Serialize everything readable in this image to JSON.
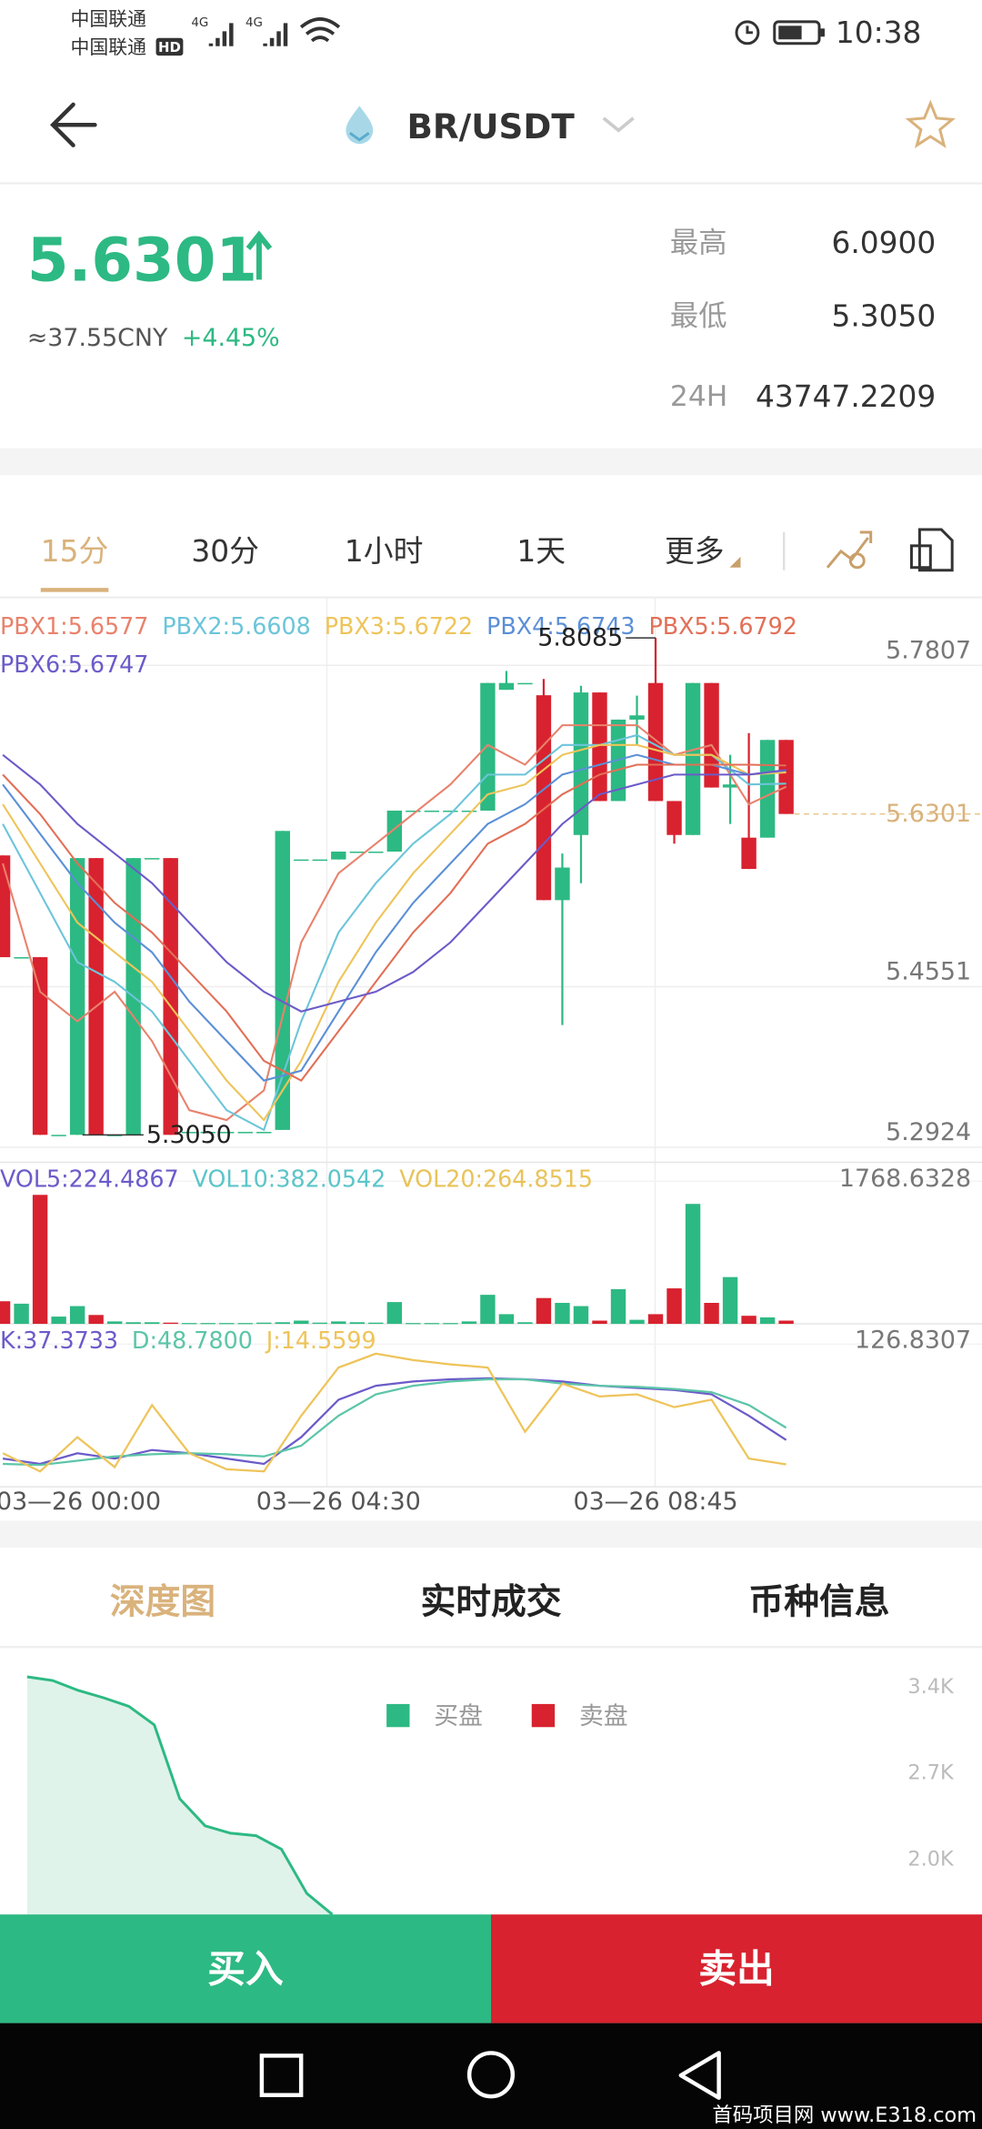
{
  "status_bar": {
    "carrier_1": "中国联通",
    "carrier_2": "中国联通",
    "network_1": "4G",
    "network_2": "4G",
    "hd_badge": "HD",
    "time": "10:38"
  },
  "header": {
    "pair": "BR/USDT"
  },
  "ticker": {
    "price": "5.6301",
    "cny": "≈37.55CNY",
    "change": "+4.45%",
    "stats": [
      {
        "label": "最高",
        "value": "6.0900"
      },
      {
        "label": "最低",
        "value": "5.3050"
      },
      {
        "label": "24H",
        "value": "43747.2209"
      }
    ]
  },
  "timeframes": {
    "items": [
      "15分",
      "30分",
      "1小时",
      "1天",
      "更多"
    ],
    "active": 0
  },
  "chart_data": [
    {
      "type": "candlestick",
      "up_color": "#2db983",
      "down_color": "#d8222f",
      "open": [
        5.5881,
        5.485,
        5.485,
        5.305,
        5.305,
        5.5854,
        5.305,
        5.305,
        5.5854,
        5.5854,
        5.308,
        5.308,
        5.308,
        5.308,
        5.308,
        5.31,
        5.584,
        5.584,
        5.584,
        5.592,
        5.592,
        5.592,
        5.6335,
        5.6335,
        5.6335,
        5.6335,
        5.6335,
        5.7559,
        5.7628,
        5.7504,
        5.5428,
        5.6088,
        5.7532,
        5.6432,
        5.7257,
        5.7628,
        5.6432,
        5.6088,
        5.7628,
        5.6569,
        5.6061,
        5.6061,
        5.7051
      ],
      "close": [
        5.485,
        5.485,
        5.305,
        5.305,
        5.5854,
        5.305,
        5.305,
        5.5854,
        5.5854,
        5.305,
        5.308,
        5.308,
        5.308,
        5.308,
        5.308,
        5.6129,
        5.584,
        5.584,
        5.592,
        5.592,
        5.592,
        5.6335,
        5.6335,
        5.6335,
        5.6335,
        5.6335,
        5.7628,
        5.7628,
        5.7628,
        5.5428,
        5.5758,
        5.7532,
        5.6432,
        5.7257,
        5.73,
        5.6432,
        5.6088,
        5.7628,
        5.6569,
        5.66,
        5.5744,
        5.7051,
        5.6301
      ],
      "high": [
        5.5881,
        5.485,
        5.485,
        5.305,
        5.5854,
        5.5854,
        5.305,
        5.5854,
        5.5854,
        5.5854,
        5.308,
        5.308,
        5.308,
        5.308,
        5.308,
        5.6129,
        5.584,
        5.584,
        5.592,
        5.592,
        5.592,
        5.6335,
        5.6335,
        5.6335,
        5.6335,
        5.6335,
        5.7628,
        5.775,
        5.7628,
        5.7669,
        5.59,
        5.76,
        5.7532,
        5.7257,
        5.75,
        5.8085,
        5.6432,
        5.7628,
        5.7628,
        5.69,
        5.712,
        5.7051,
        5.7051
      ],
      "low": [
        5.485,
        5.485,
        5.305,
        5.305,
        5.305,
        5.305,
        5.305,
        5.305,
        5.5854,
        5.305,
        5.308,
        5.308,
        5.308,
        5.308,
        5.308,
        5.31,
        5.584,
        5.584,
        5.584,
        5.592,
        5.592,
        5.592,
        5.6335,
        5.6335,
        5.6335,
        5.6335,
        5.6335,
        5.7559,
        5.7628,
        5.5428,
        5.4162,
        5.56,
        5.6432,
        5.6432,
        5.7,
        5.6432,
        5.6,
        5.6088,
        5.6569,
        5.62,
        5.5744,
        5.6061,
        5.6301
      ],
      "xlim": [
        -0.15,
        52.5
      ],
      "ylim": [
        5.2786,
        5.8495
      ],
      "yticks": [
        5.2924,
        5.4551,
        5.7807
      ],
      "xticks": [
        {
          "value": 0,
          "label": "03—26 00:00"
        },
        {
          "value": 18,
          "label": "03—26 04:30"
        },
        {
          "value": 35,
          "label": "03—26 08:45"
        }
      ],
      "last_price": 5.6301,
      "max_marker": {
        "x": 35,
        "value": 5.8085
      },
      "min_marker": {
        "x": 9,
        "value": 5.305,
        "label": "5.3050"
      },
      "overlay_x": [
        0,
        2,
        4,
        6,
        8,
        10,
        12,
        14,
        16,
        18,
        20,
        22,
        24,
        26,
        28,
        30,
        32,
        34,
        36,
        38,
        40,
        42
      ],
      "overlays": [
        {
          "name": "PBX1:5.6577",
          "color": "#e8826d",
          "values": [
            5.58,
            5.45,
            5.42,
            5.45,
            5.4,
            5.33,
            5.32,
            5.35,
            5.5,
            5.57,
            5.6,
            5.63,
            5.66,
            5.7,
            5.68,
            5.72,
            5.72,
            5.72,
            5.69,
            5.7,
            5.64,
            5.6577
          ]
        },
        {
          "name": "PBX2:5.6608",
          "color": "#6cc5d9",
          "values": [
            5.62,
            5.55,
            5.48,
            5.46,
            5.43,
            5.38,
            5.33,
            5.31,
            5.42,
            5.51,
            5.56,
            5.6,
            5.63,
            5.67,
            5.67,
            5.7,
            5.7,
            5.71,
            5.69,
            5.69,
            5.66,
            5.6608
          ]
        },
        {
          "name": "PBX3:5.6722",
          "color": "#eec45a",
          "values": [
            5.64,
            5.58,
            5.52,
            5.49,
            5.46,
            5.41,
            5.36,
            5.32,
            5.38,
            5.46,
            5.52,
            5.57,
            5.61,
            5.65,
            5.66,
            5.69,
            5.7,
            5.7,
            5.69,
            5.69,
            5.67,
            5.6722
          ]
        },
        {
          "name": "PBX4:5.6743",
          "color": "#5b8fd6",
          "values": [
            5.66,
            5.61,
            5.56,
            5.52,
            5.49,
            5.44,
            5.4,
            5.36,
            5.37,
            5.43,
            5.49,
            5.54,
            5.58,
            5.62,
            5.64,
            5.67,
            5.68,
            5.69,
            5.68,
            5.68,
            5.67,
            5.6743
          ]
        },
        {
          "name": "PBX5:5.6792",
          "color": "#e26f57",
          "values": [
            5.67,
            5.63,
            5.58,
            5.54,
            5.51,
            5.47,
            5.43,
            5.38,
            5.36,
            5.41,
            5.46,
            5.51,
            5.55,
            5.6,
            5.62,
            5.65,
            5.67,
            5.68,
            5.68,
            5.68,
            5.68,
            5.6792
          ]
        },
        {
          "name": "PBX6:5.6747",
          "color": "#6b5bc9",
          "values": [
            5.69,
            5.66,
            5.62,
            5.59,
            5.56,
            5.52,
            5.48,
            5.45,
            5.43,
            5.44,
            5.45,
            5.47,
            5.5,
            5.54,
            5.58,
            5.62,
            5.65,
            5.66,
            5.67,
            5.67,
            5.67,
            5.6747
          ]
        }
      ]
    },
    {
      "type": "bar",
      "values": [
        280,
        250,
        1600,
        90,
        220,
        110,
        30,
        20,
        20,
        15,
        10,
        10,
        10,
        10,
        15,
        20,
        40,
        15,
        30,
        20,
        15,
        270,
        10,
        10,
        10,
        30,
        360,
        120,
        20,
        320,
        260,
        220,
        40,
        430,
        50,
        120,
        440,
        1488,
        260,
        580,
        100,
        80,
        40
      ],
      "ylim": [
        0,
        1768.6328
      ],
      "yticks": [
        1768.6328
      ],
      "ma_labels": [
        {
          "text": "VOL5:224.4867",
          "color": "#6b5bc9"
        },
        {
          "text": "VOL10:382.0542",
          "color": "#5cc5c9"
        },
        {
          "text": "VOL20:264.8515",
          "color": "#e8c35a"
        }
      ]
    },
    {
      "type": "line",
      "x": [
        0,
        2,
        4,
        6,
        8,
        10,
        12,
        14,
        16,
        18,
        20,
        22,
        24,
        26,
        28,
        30,
        32,
        34,
        36,
        38,
        40,
        42
      ],
      "ylim": [
        0,
        126.8307
      ],
      "yticks": [
        126.8307
      ],
      "series": [
        {
          "name": "K:37.3733",
          "color": "#6b5bc9",
          "values": [
            20,
            15,
            25,
            20,
            28,
            25,
            20,
            15,
            40,
            75,
            88,
            92,
            94,
            95,
            94,
            92,
            88,
            86,
            84,
            80,
            60,
            37.3733
          ]
        },
        {
          "name": "D:48.7800",
          "color": "#5cc5a8",
          "values": [
            15,
            14,
            18,
            22,
            24,
            25,
            24,
            22,
            32,
            60,
            80,
            88,
            92,
            94,
            94,
            90,
            88,
            87,
            85,
            82,
            70,
            48.78
          ]
        },
        {
          "name": "J:14.5599",
          "color": "#eec45a",
          "values": [
            25,
            8,
            40,
            12,
            70,
            25,
            10,
            8,
            60,
            105,
            118,
            112,
            108,
            105,
            45,
            90,
            78,
            80,
            68,
            75,
            20,
            14.5599
          ]
        }
      ]
    },
    {
      "type": "area",
      "color": "#2db983",
      "values": [
        3480,
        3450,
        3370,
        3310,
        3240,
        3090,
        2490,
        2270,
        2210,
        2190,
        2080,
        1720,
        1550
      ],
      "ylim": [
        1550,
        3700
      ],
      "yticks": [
        {
          "value": 3400,
          "label": "3.4K"
        },
        {
          "value": 2700,
          "label": "2.7K"
        },
        {
          "value": 2000,
          "label": "2.0K"
        }
      ],
      "legend": [
        {
          "name": "买盘",
          "color": "#2db983"
        },
        {
          "name": "卖盘",
          "color": "#d8222f"
        }
      ]
    }
  ],
  "bottom_tabs": {
    "items": [
      "深度图",
      "实时成交",
      "币种信息"
    ],
    "active": 0
  },
  "actions": {
    "buy": "买入",
    "sell": "卖出"
  },
  "watermark": "首码项目网 www.E318.com"
}
